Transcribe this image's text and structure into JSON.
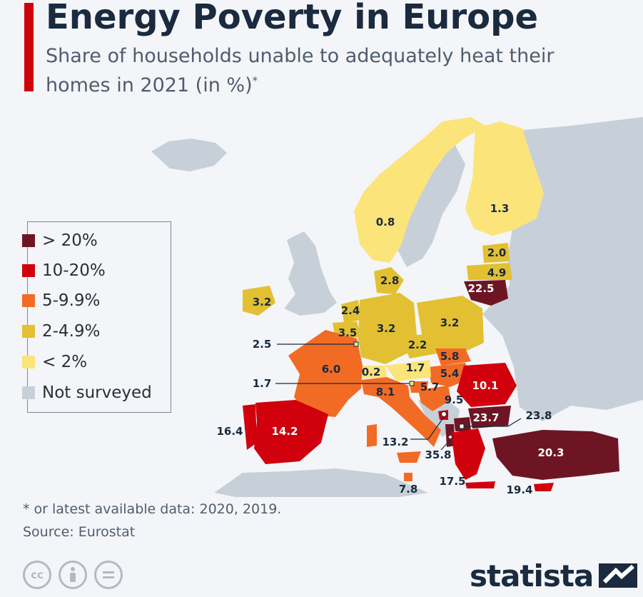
{
  "header": {
    "title": "Energy Poverty in Europe",
    "subtitle": "Share of households unable to adequately heat their homes in 2021 (in %)",
    "subtitle_mark": "*"
  },
  "legend": {
    "items": [
      {
        "label": "> 20%",
        "color": "#6e1523"
      },
      {
        "label": "10-20%",
        "color": "#d0000d"
      },
      {
        "label": "5-9.9%",
        "color": "#f26b25"
      },
      {
        "label": "2-4.9%",
        "color": "#e2c032"
      },
      {
        "label": "< 2%",
        "color": "#fbe47a"
      },
      {
        "label": "Not surveyed",
        "color": "#c7d0d9"
      }
    ]
  },
  "map_values": {
    "norway": "0.8",
    "finland": "1.3",
    "estonia": "2.0",
    "latvia": "4.9",
    "lithuania": "22.5",
    "denmark": "2.8",
    "ireland": "3.2",
    "netherlands": "2.4",
    "belgium": "3.5",
    "luxembourg": "2.5",
    "germany": "3.2",
    "poland": "3.2",
    "czechia": "2.2",
    "slovakia": "5.8",
    "hungary": "5.4",
    "austria": "1.7",
    "switzerland": "0.2",
    "liechtenstein": "1.7",
    "slovenia": "5.7",
    "france": "6.0",
    "italy": "8.1",
    "croatia": "9.5",
    "romania": "10.1",
    "bulgaria": "23.7",
    "north_macedonia": "23.8",
    "portugal": "16.4",
    "spain": "14.2",
    "montenegro": "13.2",
    "albania": "35.8",
    "greece": "17.5",
    "malta": "7.8",
    "cyprus": "19.4",
    "turkey": "20.3"
  },
  "footer": {
    "footnote": "* or latest available data: 2020, 2019.",
    "source": "Source: Eurostat",
    "brand": "statista"
  },
  "colors": {
    "gt20": "#6e1523",
    "r10_20": "#d0000d",
    "r5_10": "#f26b25",
    "r2_5": "#e2c032",
    "lt2": "#fbe47a",
    "not_surveyed": "#c7d0d9",
    "accent": "#d0000d",
    "title": "#1a2a3f"
  },
  "icons": [
    "cc-icon",
    "attribution-icon",
    "no-derivatives-icon",
    "statista-logo-icon"
  ]
}
